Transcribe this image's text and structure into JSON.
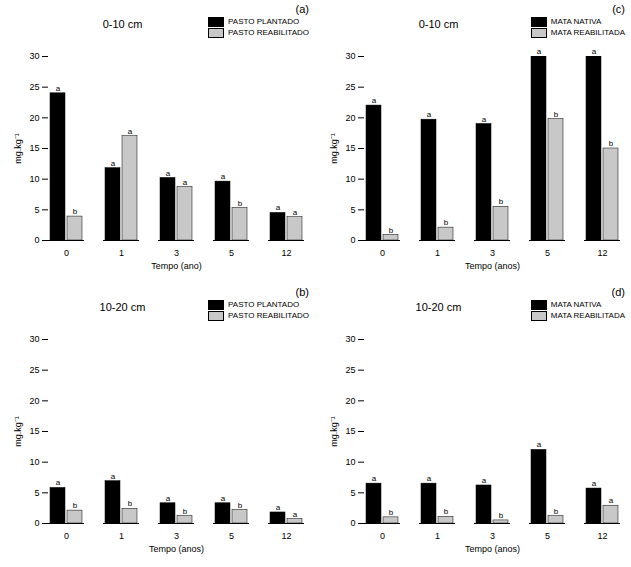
{
  "chart_data": [
    {
      "type": "bar",
      "panel_label": "(a)",
      "title": "0-10 cm",
      "x_label": "Tempo (ano)",
      "y_label": "mg.kg⁻¹",
      "categories": [
        "0",
        "1",
        "3",
        "5",
        "12"
      ],
      "ylim": [
        0,
        30
      ],
      "yticks": [
        0,
        5,
        10,
        15,
        20,
        25,
        30
      ],
      "legend": "top-right",
      "series": [
        {
          "name": "PASTO PLANTADO",
          "color": "#000000",
          "values": [
            24,
            11.8,
            10.2,
            9.6,
            4.5
          ],
          "letters": [
            "a",
            "a",
            "a",
            "a",
            "a"
          ]
        },
        {
          "name": "PASTO REABILITADO",
          "color": "#c8c8c8",
          "values": [
            3.9,
            17,
            8.7,
            5.3,
            3.8
          ],
          "letters": [
            "b",
            "a",
            "a",
            "b",
            "a"
          ]
        }
      ]
    },
    {
      "type": "bar",
      "panel_label": "(c)",
      "title": "0-10 cm",
      "x_label": "Tempo (anos)",
      "y_label": "mg.kg⁻¹",
      "categories": [
        "0",
        "1",
        "3",
        "5",
        "12"
      ],
      "ylim": [
        0,
        30
      ],
      "yticks": [
        0,
        5,
        10,
        15,
        20,
        25,
        30
      ],
      "legend": "top-right",
      "series": [
        {
          "name": "MATA NATIVA",
          "color": "#000000",
          "values": [
            22,
            19.7,
            19,
            30,
            30
          ],
          "letters": [
            "a",
            "a",
            "a",
            "a",
            "a"
          ]
        },
        {
          "name": "MATA REABILITADA",
          "color": "#c8c8c8",
          "values": [
            0.9,
            2.1,
            5.5,
            19.8,
            15
          ],
          "letters": [
            "b",
            "b",
            "b",
            "b",
            "b"
          ]
        }
      ]
    },
    {
      "type": "bar",
      "panel_label": "(b)",
      "title": "10-20 cm",
      "x_label": "Tempo (anos)",
      "y_label": "mg.kg⁻¹",
      "categories": [
        "0",
        "1",
        "3",
        "5",
        "12"
      ],
      "ylim": [
        0,
        30
      ],
      "yticks": [
        0,
        5,
        10,
        15,
        20,
        25,
        30
      ],
      "legend": "top-right",
      "series": [
        {
          "name": "PASTO PLANTADO",
          "color": "#000000",
          "values": [
            5.8,
            6.9,
            3.3,
            3.3,
            1.8
          ],
          "letters": [
            "a",
            "a",
            "a",
            "a",
            "a"
          ]
        },
        {
          "name": "PASTO REABILITADO",
          "color": "#c8c8c8",
          "values": [
            2.1,
            2.4,
            1.2,
            2.2,
            0.7
          ],
          "letters": [
            "b",
            "b",
            "b",
            "b",
            "a"
          ]
        }
      ]
    },
    {
      "type": "bar",
      "panel_label": "(d)",
      "title": "10-20 cm",
      "x_label": "Tempo (anos)",
      "y_label": "mg.kg⁻¹",
      "categories": [
        "0",
        "1",
        "3",
        "5",
        "12"
      ],
      "ylim": [
        0,
        30
      ],
      "yticks": [
        0,
        5,
        10,
        15,
        20,
        25,
        30
      ],
      "legend": "top-right",
      "series": [
        {
          "name": "MATA NATIVA",
          "color": "#000000",
          "values": [
            6.5,
            6.5,
            6.2,
            12,
            5.7
          ],
          "letters": [
            "a",
            "a",
            "a",
            "a",
            "a"
          ]
        },
        {
          "name": "MATA REABILITADA",
          "color": "#c8c8c8",
          "values": [
            1,
            1.1,
            0.5,
            1.2,
            2.9
          ],
          "letters": [
            "b",
            "b",
            "b",
            "b",
            "a"
          ]
        }
      ]
    }
  ]
}
